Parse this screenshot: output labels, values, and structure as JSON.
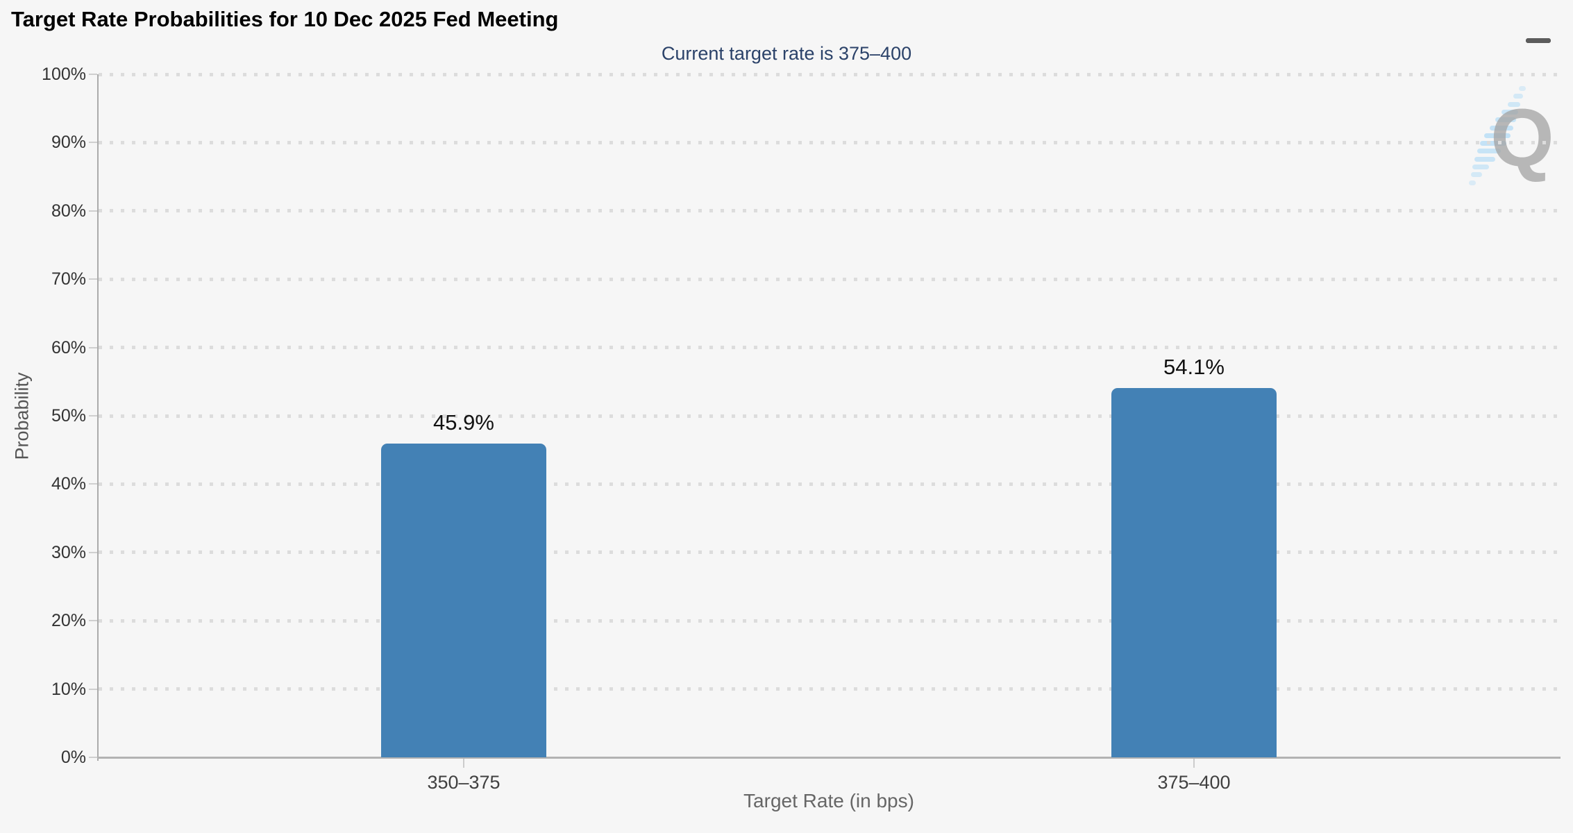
{
  "header": {
    "title": "Target Rate Probabilities for 10 Dec 2025 Fed Meeting"
  },
  "menu": {
    "icon": "hamburger-menu-icon"
  },
  "watermark": {
    "letter": "Q",
    "name": "quikstrike-logo-watermark"
  },
  "chart_data": {
    "type": "bar",
    "title": "Target Rate Probabilities for 10 Dec 2025 Fed Meeting",
    "subtitle": "Current target rate is 375–400",
    "categories": [
      "350–375",
      "375–400"
    ],
    "values": [
      45.9,
      54.1
    ],
    "value_labels": [
      "45.9%",
      "54.1%"
    ],
    "xlabel": "Target Rate (in bps)",
    "ylabel": "Probability",
    "ylim": [
      0,
      100
    ],
    "ytick_step": 10,
    "ytick_labels": [
      "0%",
      "10%",
      "20%",
      "30%",
      "40%",
      "50%",
      "60%",
      "70%",
      "80%",
      "90%",
      "100%"
    ],
    "grid": "dotted-horizontal",
    "legend": "none",
    "bar_color": "#4381b5",
    "subtitle_color": "#2b4269",
    "axis_line_color": "#b3b3b3",
    "grid_dot_color": "#dcdcdc"
  }
}
